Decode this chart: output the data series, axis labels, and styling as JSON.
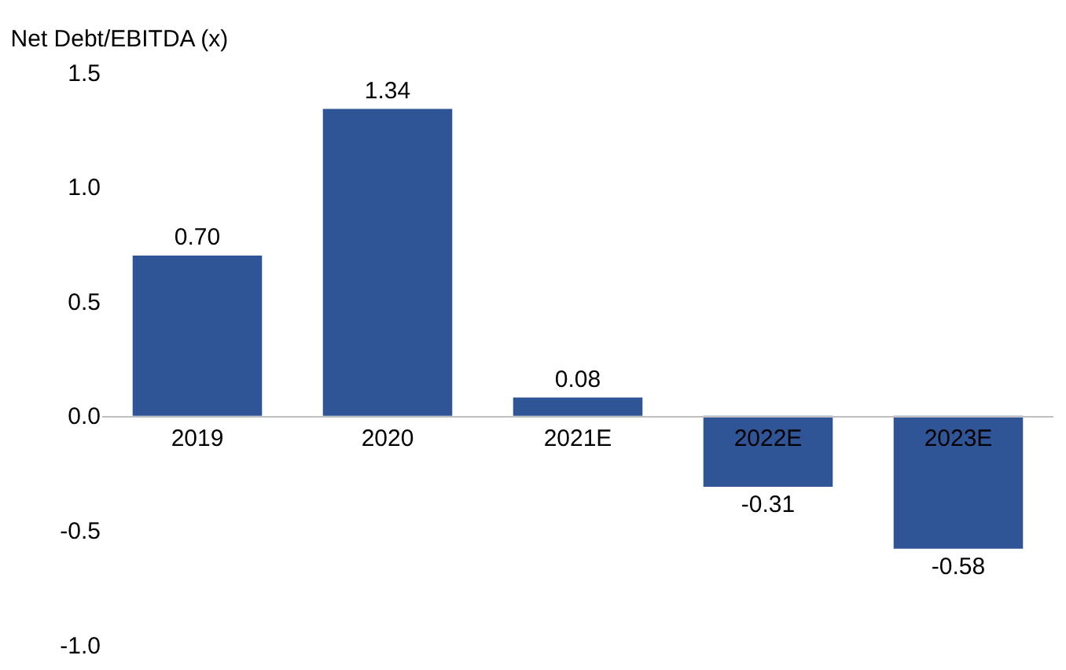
{
  "chart_data": {
    "type": "bar",
    "title": "Net Debt/EBITDA (x)",
    "categories": [
      "2019",
      "2020",
      "2021E",
      "2022E",
      "2023E"
    ],
    "values": [
      0.7,
      1.34,
      0.08,
      -0.31,
      -0.58
    ],
    "value_labels": [
      "0.70",
      "1.34",
      "0.08",
      "-0.31",
      "-0.58"
    ],
    "color": "#2f5597",
    "ylim": [
      -1.0,
      1.5
    ],
    "yticks": [
      1.5,
      {
        "value": 1,
        "label": "1.0"
      },
      {
        "value": 0.5,
        "label": "0.5"
      },
      {
        "value": 0,
        "label": "0.0"
      },
      {
        "value": -0.5,
        "label": "-0.5"
      },
      {
        "value": -1,
        "label": "-1.0"
      }
    ],
    "grid": false,
    "legend": false
  }
}
